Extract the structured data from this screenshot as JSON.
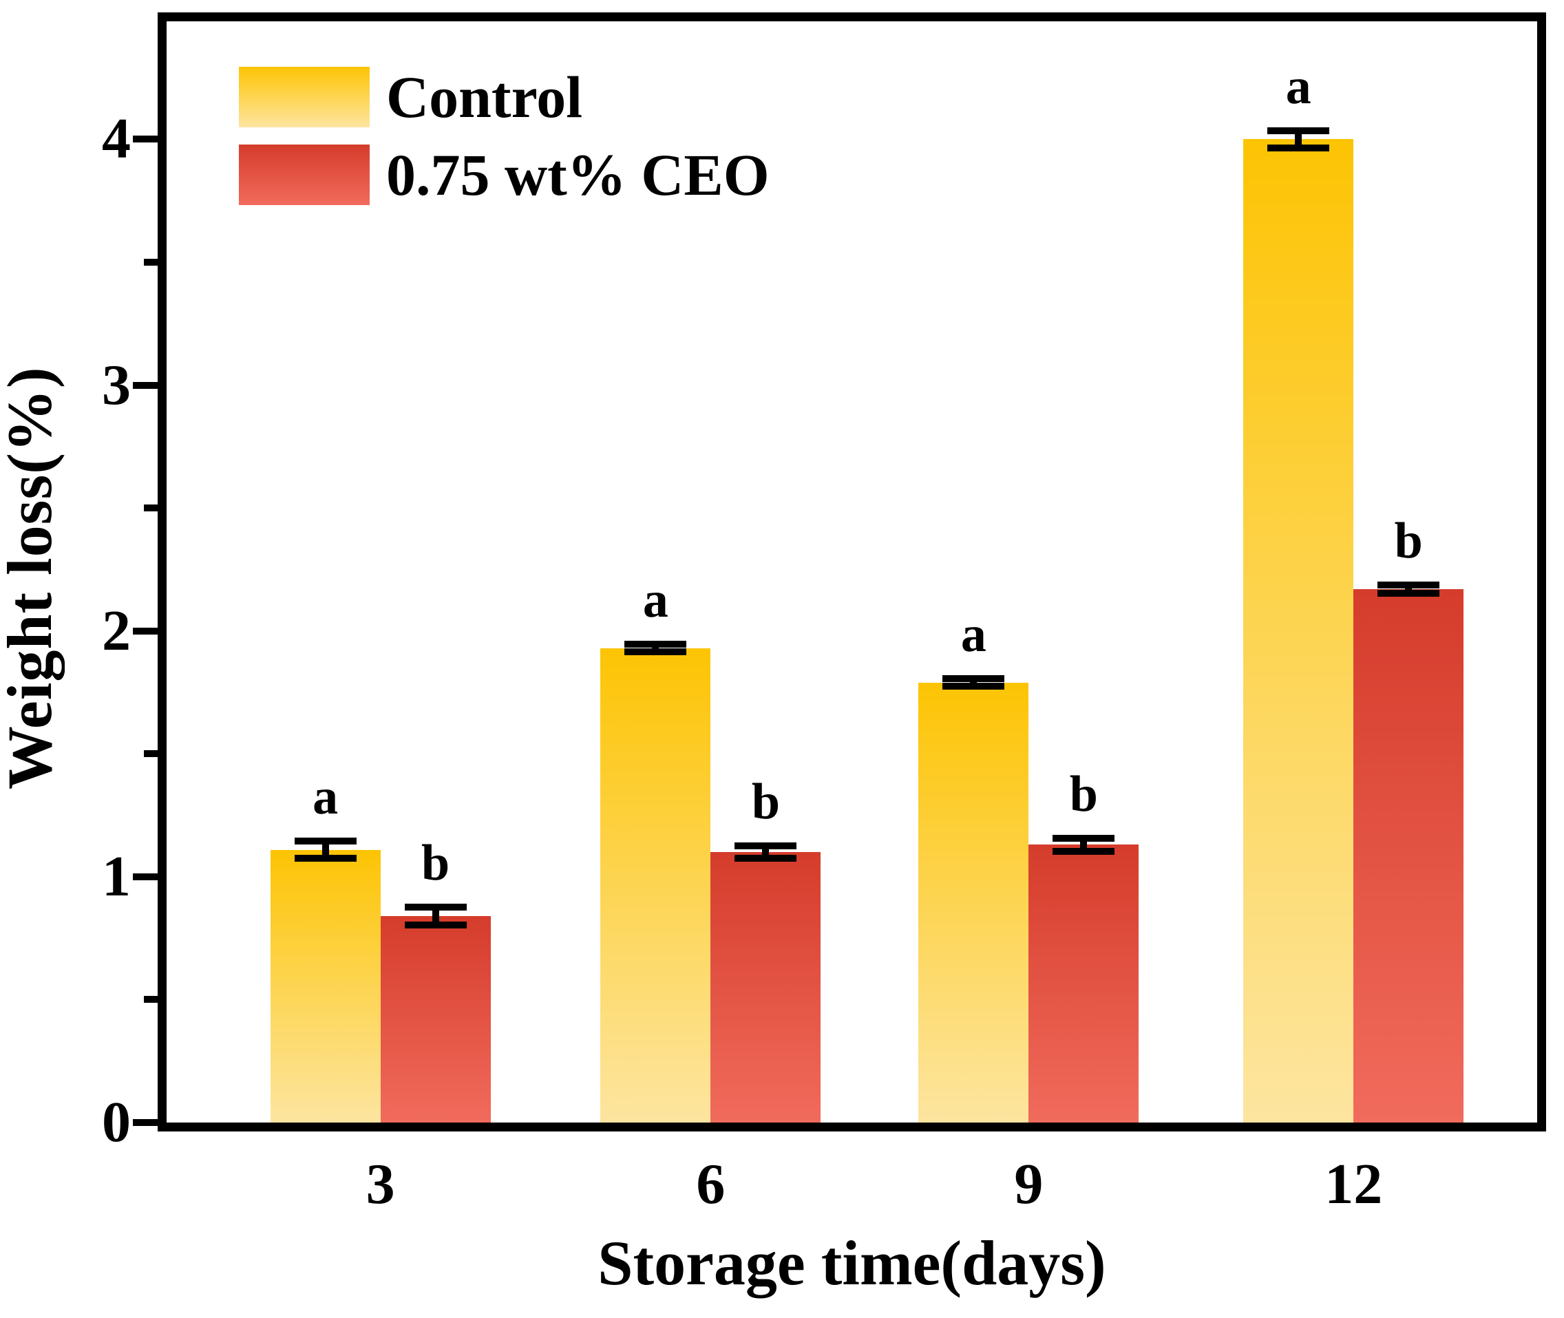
{
  "chart_data": {
    "type": "bar",
    "title": "",
    "xlabel": "Storage time(days)",
    "ylabel": "Weight loss(%)",
    "categories": [
      "3",
      "6",
      "9",
      "12"
    ],
    "series": [
      {
        "name": "Control",
        "sig_letter": "a",
        "values": [
          1.11,
          1.93,
          1.79,
          4.0
        ],
        "errors": [
          0.05,
          0.03,
          0.03,
          0.05
        ],
        "color_top": "#FDC404",
        "color_bottom": "#FDE5A0"
      },
      {
        "name": "0.75 wt% CEO",
        "sig_letter": "b",
        "values": [
          0.84,
          1.1,
          1.13,
          2.17
        ],
        "errors": [
          0.05,
          0.04,
          0.04,
          0.03
        ],
        "color_top": "#D53C2B",
        "color_bottom": "#F16B5C"
      }
    ],
    "ylim": [
      0,
      4.48
    ],
    "yticks": [
      0,
      1,
      2,
      3,
      4
    ],
    "minor_yticks": [
      0.5,
      1.5,
      2.5,
      3.5
    ],
    "group_centers_pct": [
      15.6,
      39.7,
      62.9,
      86.6
    ],
    "grid": false,
    "legend_position": "top-left",
    "axis_color": "#000000",
    "background_color": "#FFFFFF"
  }
}
